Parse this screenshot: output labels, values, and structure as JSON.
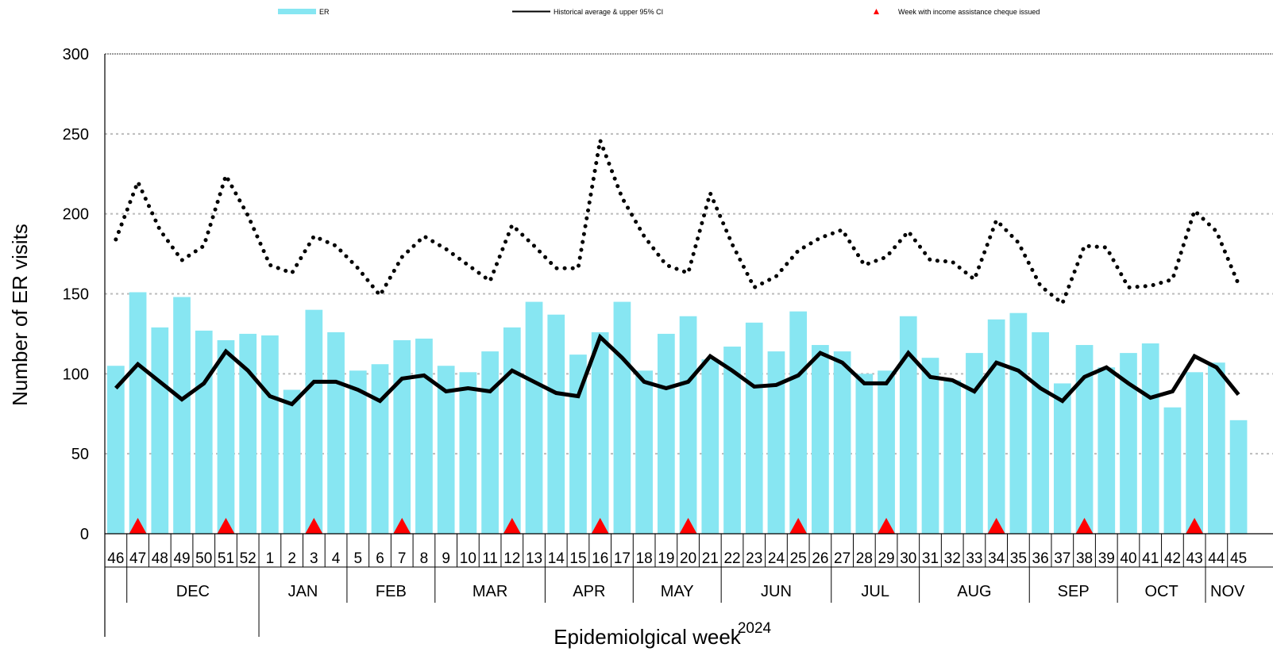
{
  "chart_data": {
    "type": "bar",
    "title": "",
    "xlabel": "Epidemiolgical week",
    "year_label": "2024",
    "ylabel": "Number of ER visits",
    "ylim": [
      0,
      300
    ],
    "yticks": [
      0,
      50,
      100,
      150,
      200,
      250,
      300
    ],
    "grid": true,
    "legend": {
      "placement": "top",
      "items": [
        {
          "label": "ER",
          "kind": "bar"
        },
        {
          "label": "Historical average & upper 95% CI",
          "kind": "line"
        },
        {
          "label": "Week with income assistance cheque issued",
          "kind": "triangle"
        }
      ]
    },
    "weeks": [
      "46",
      "47",
      "48",
      "49",
      "50",
      "51",
      "52",
      "1",
      "2",
      "3",
      "4",
      "5",
      "6",
      "7",
      "8",
      "9",
      "10",
      "11",
      "12",
      "13",
      "14",
      "15",
      "16",
      "17",
      "18",
      "19",
      "20",
      "21",
      "22",
      "23",
      "24",
      "25",
      "26",
      "27",
      "28",
      "29",
      "30",
      "31",
      "32",
      "33",
      "34",
      "35",
      "36",
      "37",
      "38",
      "39",
      "40",
      "41",
      "42",
      "43",
      "44",
      "45"
    ],
    "months": [
      {
        "label": "",
        "start": 0,
        "end": 1
      },
      {
        "label": "DEC",
        "start": 1,
        "end": 7
      },
      {
        "label": "JAN",
        "start": 7,
        "end": 11
      },
      {
        "label": "FEB",
        "start": 11,
        "end": 15
      },
      {
        "label": "MAR",
        "start": 15,
        "end": 20
      },
      {
        "label": "APR",
        "start": 20,
        "end": 24
      },
      {
        "label": "MAY",
        "start": 24,
        "end": 28
      },
      {
        "label": "JUN",
        "start": 28,
        "end": 33
      },
      {
        "label": "JUL",
        "start": 33,
        "end": 37
      },
      {
        "label": "AUG",
        "start": 37,
        "end": 42
      },
      {
        "label": "SEP",
        "start": 42,
        "end": 46
      },
      {
        "label": "OCT",
        "start": 46,
        "end": 50
      },
      {
        "label": "NOV",
        "start": 50,
        "end": 52
      }
    ],
    "series": [
      {
        "name": "ER",
        "type": "bar",
        "color": "#87E6F2",
        "values": [
          105,
          151,
          129,
          148,
          127,
          121,
          125,
          124,
          90,
          140,
          126,
          102,
          106,
          121,
          122,
          105,
          101,
          114,
          129,
          145,
          137,
          112,
          126,
          145,
          102,
          125,
          136,
          109,
          117,
          132,
          114,
          139,
          118,
          114,
          100,
          102,
          136,
          110,
          96,
          113,
          134,
          138,
          126,
          94,
          118,
          104,
          113,
          119,
          79,
          101,
          107,
          71
        ]
      },
      {
        "name": "Historical average",
        "type": "line",
        "color": "#000000",
        "values": [
          91,
          106,
          95,
          84,
          94,
          114,
          102,
          86,
          81,
          95,
          95,
          90,
          83,
          97,
          99,
          89,
          91,
          89,
          102,
          95,
          88,
          86,
          123,
          110,
          95,
          91,
          95,
          111,
          102,
          92,
          93,
          99,
          113,
          107,
          94,
          94,
          113,
          98,
          96,
          89,
          107,
          102,
          91,
          83,
          98,
          104,
          94,
          85,
          89,
          111,
          104,
          87
        ]
      },
      {
        "name": "Upper 95% CI",
        "type": "line",
        "style": "dotted",
        "color": "#000000",
        "values": [
          184,
          220,
          190,
          171,
          180,
          224,
          199,
          168,
          163,
          186,
          180,
          166,
          149,
          173,
          186,
          178,
          168,
          158,
          193,
          180,
          166,
          166,
          246,
          210,
          186,
          168,
          163,
          213,
          181,
          154,
          161,
          177,
          185,
          190,
          168,
          173,
          189,
          171,
          170,
          159,
          196,
          182,
          155,
          144,
          180,
          179,
          154,
          155,
          159,
          202,
          189,
          156
        ]
      }
    ],
    "cheque_weeks": [
      "47",
      "51",
      "3",
      "7",
      "12",
      "16",
      "20",
      "25",
      "29",
      "34",
      "38",
      "43"
    ],
    "colors": {
      "bar": "#87E6F2",
      "line": "#000000",
      "marker": "#FF0000",
      "grid": "#BBBBBB"
    }
  }
}
